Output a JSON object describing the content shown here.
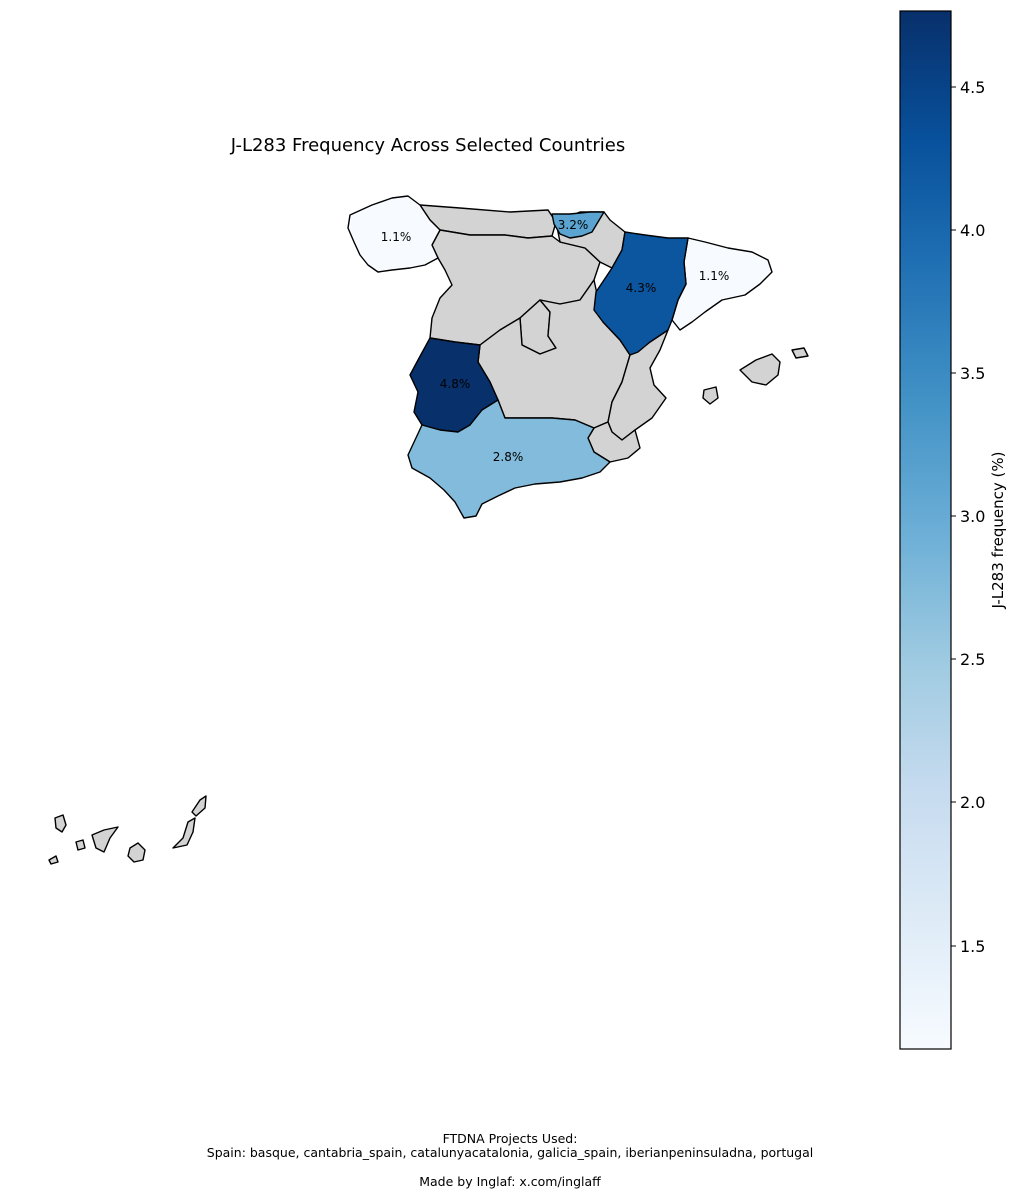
{
  "title": "J-L283 Frequency Across Selected Countries",
  "colorbar": {
    "label": "J-L283 frequency (%)",
    "min": 1.1,
    "max": 4.8,
    "ticks": [
      "1.5",
      "2.0",
      "2.5",
      "3.0",
      "3.5",
      "4.0",
      "4.5"
    ],
    "colormap": "Blues"
  },
  "colors": {
    "no_data": "#d3d3d3",
    "galicia": "#f7fbff",
    "catalonia": "#f7fbff",
    "basque": "#5ba3d0",
    "aragon": "#0c56a0",
    "extremadura": "#08306b",
    "andalusia": "#82bbdb"
  },
  "regions": [
    {
      "name": "Galicia",
      "value": 1.1,
      "label": "1.1%"
    },
    {
      "name": "Catalonia",
      "value": 1.1,
      "label": "1.1%"
    },
    {
      "name": "Basque Country",
      "value": 3.2,
      "label": "3.2%"
    },
    {
      "name": "Aragon",
      "value": 4.3,
      "label": "4.3%"
    },
    {
      "name": "Extremadura",
      "value": 4.8,
      "label": "4.8%"
    },
    {
      "name": "Andalusia",
      "value": 2.8,
      "label": "2.8%"
    }
  ],
  "footer": {
    "line1": "FTDNA Projects Used:",
    "line2": "Spain: basque, cantabria_spain, catalunyacatalonia, galicia_spain, iberianpeninsuladna, portugal",
    "line3": "Made by Inglaf: x.com/inglaff"
  }
}
